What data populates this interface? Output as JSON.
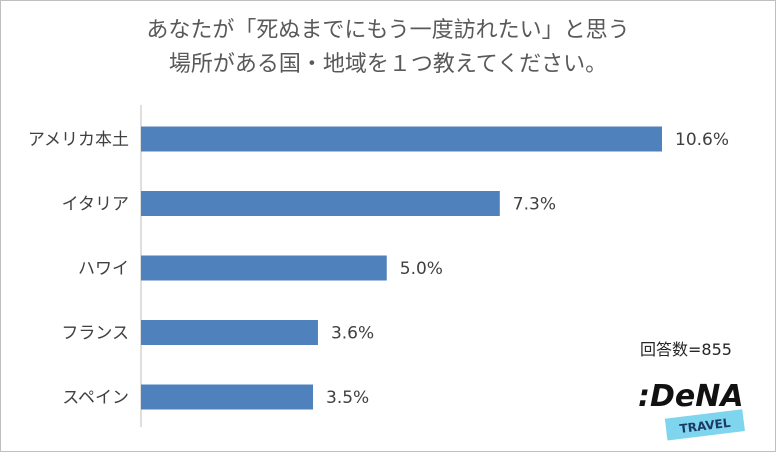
{
  "title": {
    "line1": "あなたが「死ぬまでにもう一度訪れたい」と思う",
    "line2": "場所がある国・地域を１つ教えてください。"
  },
  "sample_size": "回答数=855",
  "logo": {
    "wordmark": ":DeNA",
    "tag": "TRAVEL",
    "colors": {
      "text": "#111111",
      "tag_bg": "#7fd4ee",
      "tag_text": "#1a3a66"
    }
  },
  "colors": {
    "bar": "#4f81bd",
    "axis": "#bfbfbf",
    "text": "#404040"
  },
  "chart_data": {
    "type": "bar",
    "orientation": "horizontal",
    "categories": [
      "アメリカ本土",
      "イタリア",
      "ハワイ",
      "フランス",
      "スペイン"
    ],
    "values": [
      10.6,
      7.3,
      5.0,
      3.6,
      3.5
    ],
    "value_labels": [
      "10.6%",
      "7.3%",
      "5.0%",
      "3.6%",
      "3.5%"
    ],
    "unit": "%",
    "xlim": [
      0,
      10.6
    ],
    "grid": false,
    "legend": "none"
  }
}
